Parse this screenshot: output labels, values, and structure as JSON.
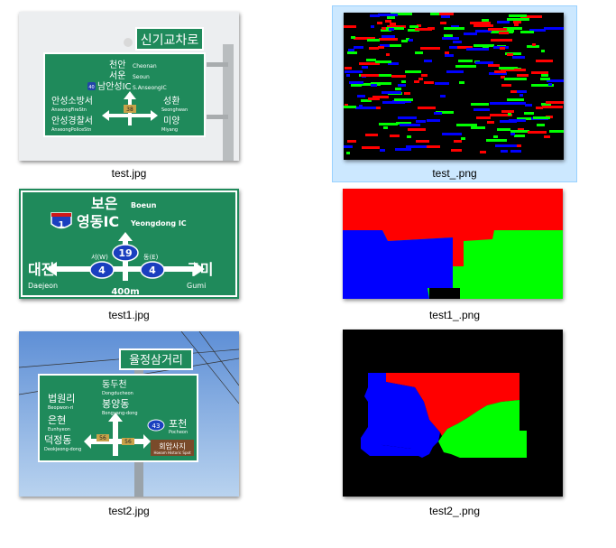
{
  "files": [
    {
      "name": "test.jpg"
    },
    {
      "name": "test_.png"
    },
    {
      "name": "test1.jpg"
    },
    {
      "name": "test1_.png"
    },
    {
      "name": "test2.jpg"
    },
    {
      "name": "test2_.png"
    }
  ],
  "sign1": {
    "top_korean": "신기교차로",
    "lines": [
      {
        "ko": "천안",
        "en": "Cheonan"
      },
      {
        "ko": "서운",
        "en": "Seoun"
      },
      {
        "ko": "남안성IC",
        "en": "S.AnseongIC"
      },
      {
        "ko": "안성소방서",
        "en": "AnseongFireStn"
      },
      {
        "ko": "성환",
        "en": "Seonghwan"
      },
      {
        "ko": "안성경찰서",
        "en": "AnseongPoliceStn"
      },
      {
        "ko": "미양",
        "en": "Miyang"
      }
    ],
    "shield": "40",
    "route": "38"
  },
  "sign2": {
    "north_ko": "보은",
    "north_en": "Boeun",
    "ic_ko": "영동IC",
    "ic_en": "Yeongdong IC",
    "shield": "1",
    "west_ko": "대전",
    "west_en": "Daejeon",
    "east_ko": "구미",
    "east_en": "Gumi",
    "route_north": "19",
    "route_west": "4",
    "route_east": "4",
    "label_west": "서(W)",
    "label_east": "동(E)",
    "distance": "400m"
  },
  "sign3": {
    "top_korean": "율정삼거리",
    "lines": [
      {
        "ko": "동두천",
        "en": "Dongducheon"
      },
      {
        "ko": "봉양동",
        "en": "Bongyang-dong"
      },
      {
        "ko": "법원리",
        "en": "Beopwon-ri"
      },
      {
        "ko": "은현",
        "en": "Eunhyeon"
      },
      {
        "ko": "덕정동",
        "en": "Deokjeong-dong"
      },
      {
        "ko": "포천",
        "en": "Pocheon"
      },
      {
        "ko": "회암사지",
        "en": "Hoeam Historic Spot"
      }
    ],
    "route_a": "43",
    "route_b": "56",
    "route_c": "56"
  },
  "colors": {
    "sign_green": "#1f8a5b",
    "red": "#ff0000",
    "green": "#00ff00",
    "blue": "#0000ff",
    "black": "#000000",
    "selection": "#cce8ff"
  }
}
